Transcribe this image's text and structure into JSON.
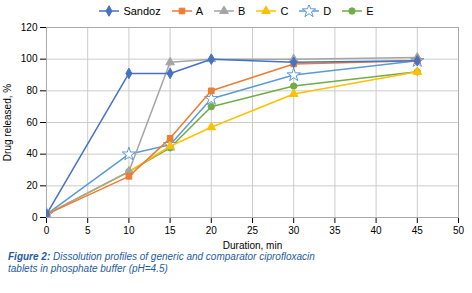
{
  "chart_data": {
    "type": "line",
    "caption": "Figure 2: Dissolution profiles of generic and comparator ciprofloxacin\ntablets in phosphate buffer (pH=4.5)",
    "xlabel": "Duration, min",
    "ylabel": "Drug released, %",
    "x": [
      0,
      10,
      15,
      20,
      30,
      45
    ],
    "series": [
      {
        "name": "Sandoz",
        "color": "#4472C4",
        "marker": "diamond",
        "values": [
          2,
          91,
          91,
          100,
          98,
          99
        ]
      },
      {
        "name": "A",
        "color": "#ED7D31",
        "marker": "square",
        "values": [
          2,
          26,
          50,
          80,
          97,
          99
        ]
      },
      {
        "name": "B",
        "color": "#A5A5A5",
        "marker": "triangle",
        "values": [
          2,
          29,
          98,
          100,
          100,
          101
        ]
      },
      {
        "name": "C",
        "color": "#FFC000",
        "marker": "triangle",
        "values": [
          2,
          29,
          45,
          57,
          78,
          92
        ]
      },
      {
        "name": "D",
        "color": "#5B9BD5",
        "marker": "star_open",
        "values": [
          2,
          40,
          46,
          75,
          90,
          99
        ]
      },
      {
        "name": "E",
        "color": "#70AD47",
        "marker": "circle",
        "values": [
          2,
          29,
          44,
          70,
          83,
          92
        ]
      }
    ],
    "xlim": [
      0,
      50
    ],
    "ylim": [
      0,
      120
    ],
    "xticks": [
      0,
      5,
      10,
      15,
      20,
      25,
      30,
      35,
      40,
      45,
      50
    ],
    "yticks": [
      0,
      20,
      40,
      60,
      80,
      100,
      120
    ],
    "grid": true,
    "legend": "top"
  }
}
